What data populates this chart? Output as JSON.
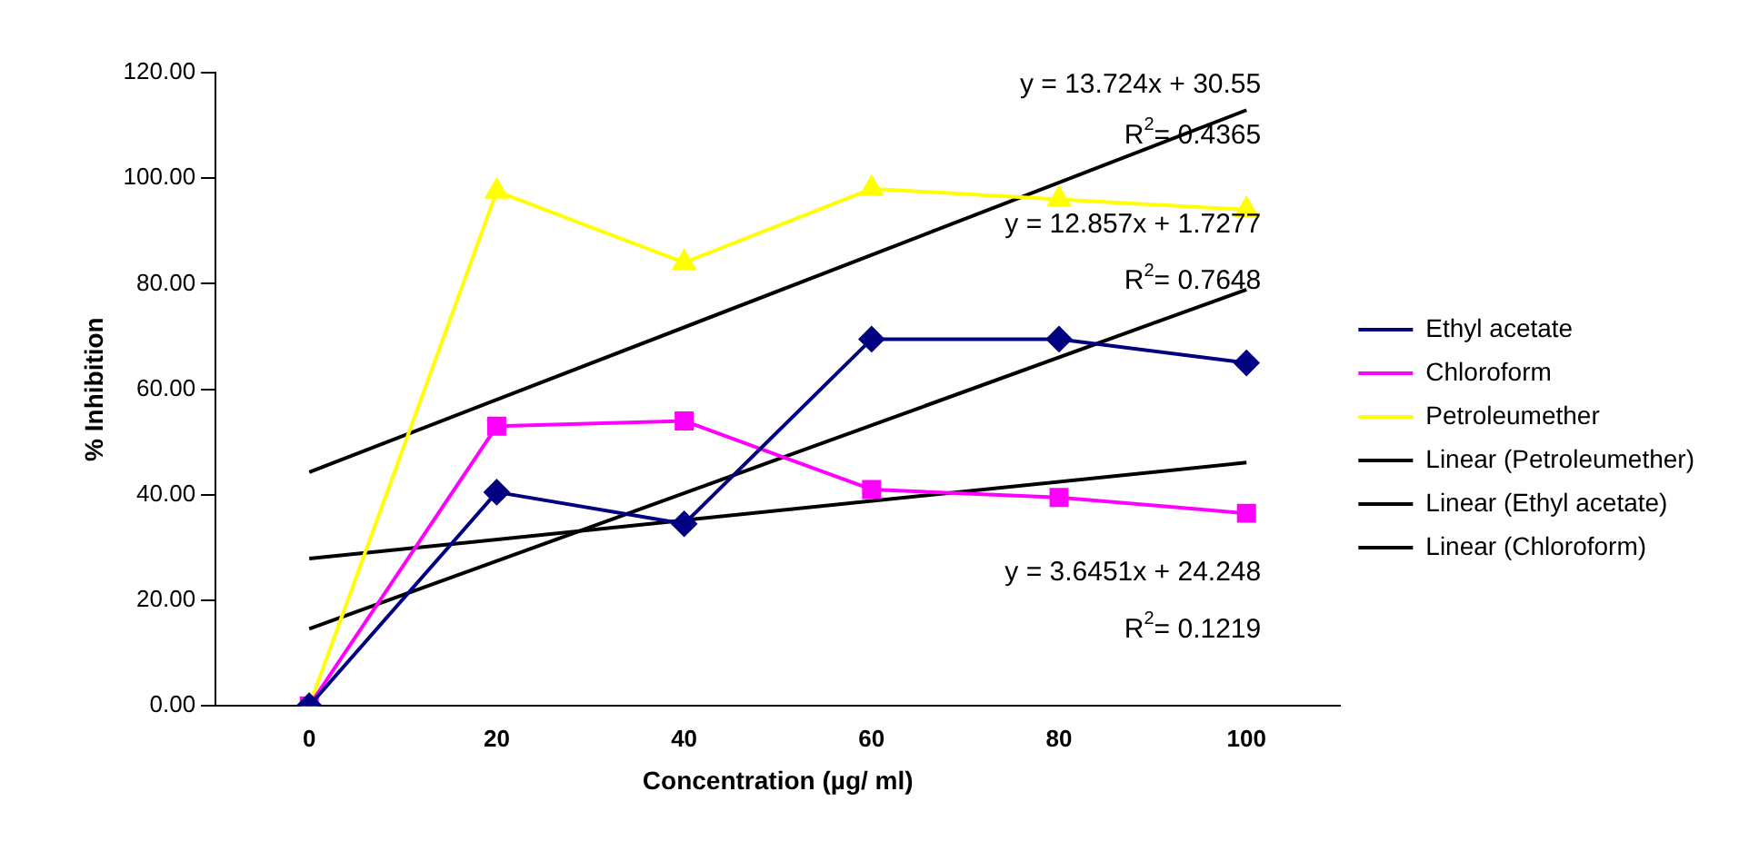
{
  "chart_data": {
    "type": "line",
    "xlabel": "Concentration (µg/ ml)",
    "ylabel": "% Inhibition",
    "categories": [
      "0",
      "20",
      "40",
      "60",
      "80",
      "100"
    ],
    "series": [
      {
        "name": "Ethyl acetate",
        "color": "#000080",
        "marker": "diamond",
        "values": [
          0,
          40.5,
          34.5,
          69.5,
          69.5,
          65
        ]
      },
      {
        "name": "Chloroform",
        "color": "#ff00ff",
        "marker": "square",
        "values": [
          0,
          53,
          54,
          41,
          39.5,
          36.5
        ]
      },
      {
        "name": "Petroleumether",
        "color": "#ffff00",
        "marker": "triangle",
        "values": [
          0,
          97.5,
          84,
          98,
          96,
          94
        ]
      },
      {
        "name": "Linear (Petroleumether)",
        "color": "#000000",
        "marker": "none",
        "x": [
          "0",
          "100"
        ],
        "values": [
          44.3,
          112.9
        ]
      },
      {
        "name": "Linear (Ethyl acetate)",
        "color": "#000000",
        "marker": "none",
        "x": [
          "0",
          "100"
        ],
        "values": [
          14.6,
          78.9
        ]
      },
      {
        "name": "Linear (Chloroform)",
        "color": "#000000",
        "marker": "none",
        "x": [
          "0",
          "100"
        ],
        "values": [
          27.9,
          46.1
        ]
      }
    ],
    "ylim": [
      0,
      120
    ],
    "yticks": [
      {
        "value": 0,
        "label": "0.00"
      },
      {
        "value": 20,
        "label": "20.00"
      },
      {
        "value": 40,
        "label": "40.00"
      },
      {
        "value": 60,
        "label": "60.00"
      },
      {
        "value": 80,
        "label": "80.00"
      },
      {
        "value": 100,
        "label": "100.00"
      },
      {
        "value": 120,
        "label": "120.00"
      }
    ],
    "grid": false,
    "legend": "right",
    "annotations": [
      "y = 13.724x + 30.55",
      "R$^{2}$= 0.4365",
      "y = 12.857x + 1.7277",
      "R$^{2}$= 0.7648",
      "y = 3.6451x + 24.248",
      "R$^{2}$= 0.1219"
    ]
  }
}
